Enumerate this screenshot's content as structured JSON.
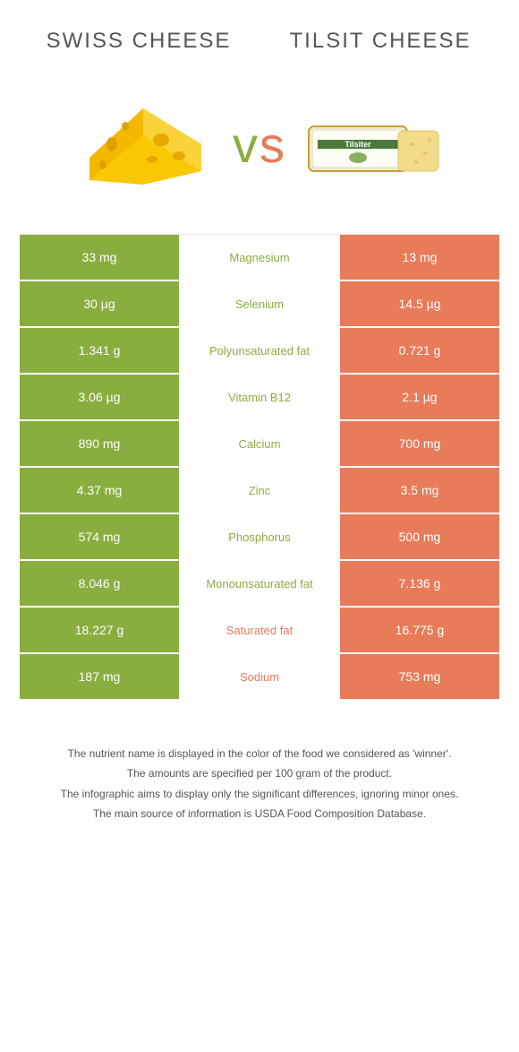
{
  "colors": {
    "green": "#8aad3f",
    "orange": "#e87b59",
    "background": "#ffffff",
    "text": "#555555"
  },
  "header": {
    "leftTitle": "Swiss cheese",
    "rightTitle": "Tilsit cheese",
    "vs": {
      "v": "v",
      "s": "s"
    }
  },
  "table": {
    "type": "comparison-table",
    "columns": [
      "left_value",
      "nutrient",
      "right_value"
    ],
    "left_bg": "#8aad3f",
    "right_bg": "#e87b59",
    "mid_bg": "#ffffff",
    "rows": [
      {
        "left": "33 mg",
        "label": "Magnesium",
        "right": "13 mg",
        "winner": "left"
      },
      {
        "left": "30 µg",
        "label": "Selenium",
        "right": "14.5 µg",
        "winner": "left"
      },
      {
        "left": "1.341 g",
        "label": "Polyunsaturated fat",
        "right": "0.721 g",
        "winner": "left"
      },
      {
        "left": "3.06 µg",
        "label": "Vitamin B12",
        "right": "2.1 µg",
        "winner": "left"
      },
      {
        "left": "890 mg",
        "label": "Calcium",
        "right": "700 mg",
        "winner": "left"
      },
      {
        "left": "4.37 mg",
        "label": "Zinc",
        "right": "3.5 mg",
        "winner": "left"
      },
      {
        "left": "574 mg",
        "label": "Phosphorus",
        "right": "500 mg",
        "winner": "left"
      },
      {
        "left": "8.046 g",
        "label": "Monounsaturated fat",
        "right": "7.136 g",
        "winner": "left"
      },
      {
        "left": "18.227 g",
        "label": "Saturated fat",
        "right": "16.775 g",
        "winner": "right"
      },
      {
        "left": "187 mg",
        "label": "Sodium",
        "right": "753 mg",
        "winner": "right"
      }
    ]
  },
  "footnotes": [
    "The nutrient name is displayed in the color of the food we considered as 'winner'.",
    "The amounts are specified per 100 gram of the product.",
    "The infographic aims to display only the significant differences, ignoring minor ones.",
    "The main source of information is USDA Food Composition Database."
  ]
}
